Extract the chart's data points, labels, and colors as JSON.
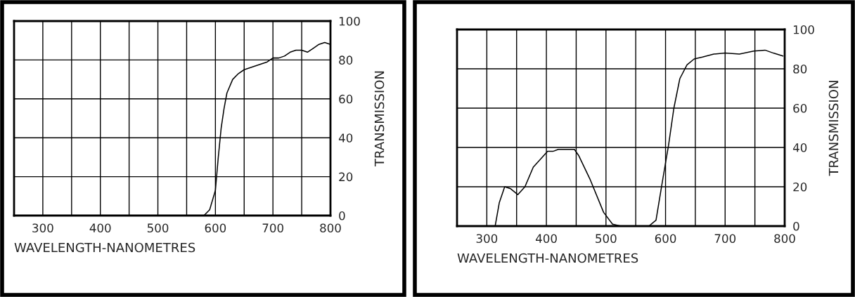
{
  "chart_data": [
    {
      "type": "line",
      "xlabel": "WAVELENGTH-NANOMETRES",
      "ylabel": "TRANSMISSION",
      "xlim": [
        250,
        800
      ],
      "ylim": [
        0,
        100
      ],
      "xticks": [
        {
          "value": 250,
          "label": null
        },
        300,
        {
          "value": 350,
          "label": null
        },
        400,
        {
          "value": 450,
          "label": null
        },
        500,
        {
          "value": 550,
          "label": null
        },
        600,
        {
          "value": 650,
          "label": null
        },
        700,
        {
          "value": 750,
          "label": null
        },
        800
      ],
      "yticks": [
        0,
        20,
        40,
        60,
        80,
        100
      ],
      "grid": true,
      "legend": false,
      "series": [
        {
          "color": "#000000",
          "x": [
            575,
            580,
            590,
            600,
            605,
            610,
            615,
            620,
            630,
            640,
            650,
            670,
            690,
            700,
            710,
            720,
            730,
            740,
            750,
            760,
            770,
            780,
            790,
            800
          ],
          "values": [
            0,
            0,
            3,
            13,
            30,
            45,
            55,
            63,
            70,
            73,
            75,
            77,
            79,
            81,
            81,
            82,
            84,
            85,
            85,
            84,
            86,
            88,
            89,
            88
          ]
        }
      ]
    },
    {
      "type": "line",
      "xlabel": "WAVELENGTH-NANOMETRES",
      "ylabel": "TRANSMISSION",
      "xlim": [
        250,
        800
      ],
      "ylim": [
        0,
        100
      ],
      "xticks": [
        {
          "value": 250,
          "label": null
        },
        300,
        {
          "value": 350,
          "label": null
        },
        400,
        {
          "value": 450,
          "label": null
        },
        500,
        {
          "value": 550,
          "label": null
        },
        600,
        {
          "value": 650,
          "label": null
        },
        700,
        {
          "value": 750,
          "label": null
        },
        800
      ],
      "yticks": [
        0,
        20,
        40,
        60,
        80,
        100
      ],
      "grid": true,
      "legend": false,
      "series": [
        {
          "color": "#000000",
          "x": [
            250,
            314,
            321,
            330,
            340,
            352,
            364,
            378,
            402,
            411,
            420,
            447,
            454,
            473,
            496,
            511,
            525,
            572,
            584,
            596,
            605,
            614,
            624,
            636,
            648,
            662,
            681,
            700,
            724,
            748,
            767,
            781,
            797
          ],
          "values": [
            0,
            0,
            12,
            20,
            19,
            16,
            20,
            30,
            38,
            38,
            39,
            39,
            36,
            24,
            7,
            1,
            0,
            0,
            3,
            25,
            41,
            60,
            75,
            82,
            85,
            86,
            87.5,
            88,
            87.5,
            89,
            89.5,
            88,
            86.5
          ]
        }
      ]
    }
  ]
}
